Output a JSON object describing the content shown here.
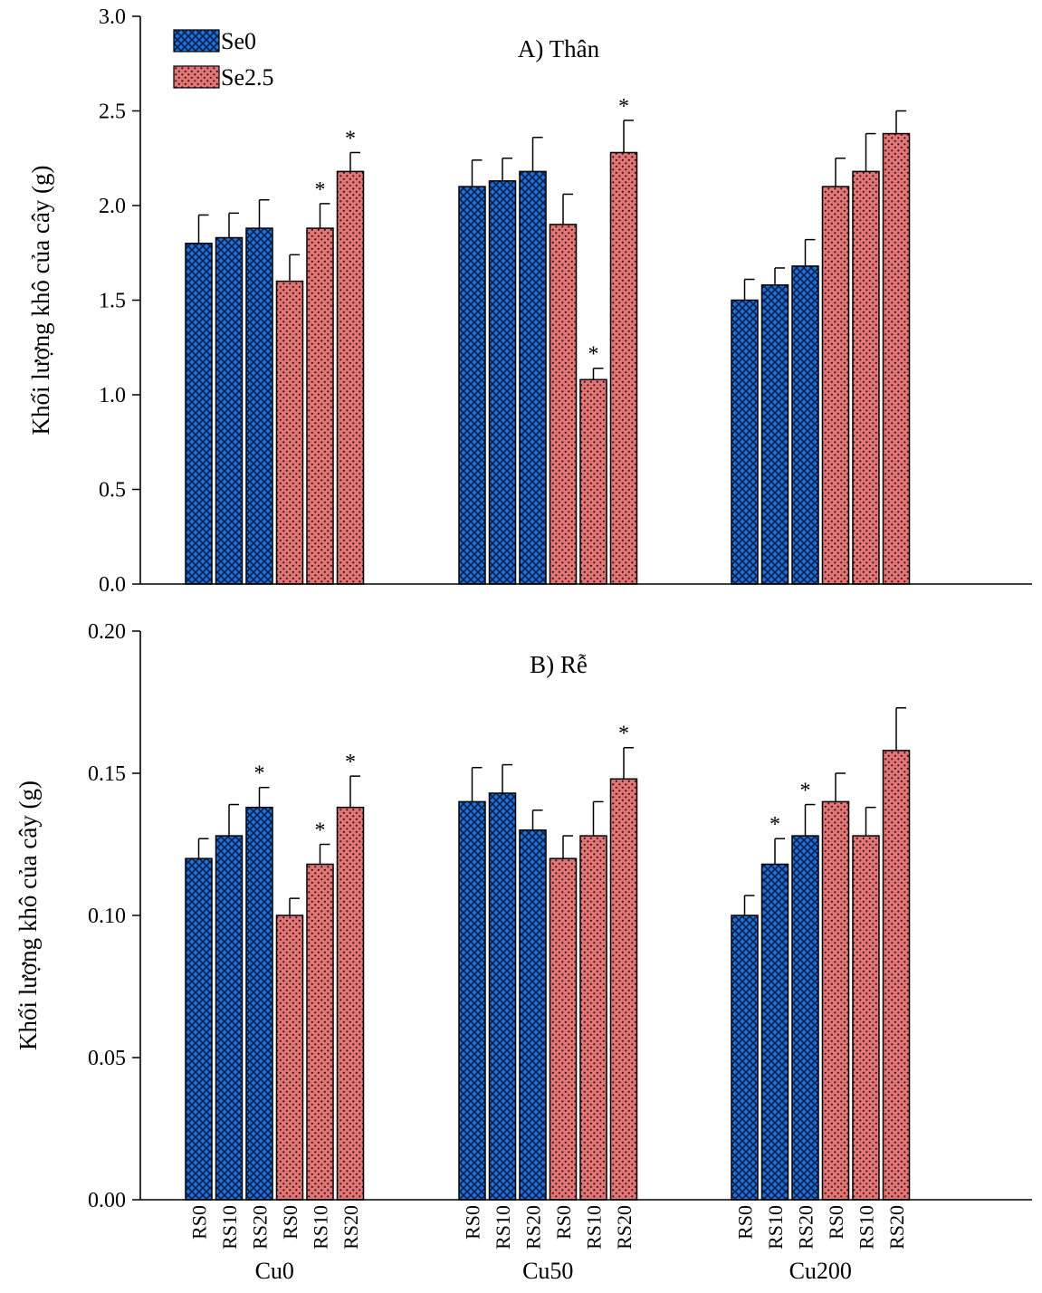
{
  "colors": {
    "se0": "#1f6fd6",
    "se25": "#e07676",
    "axis": "#000000"
  },
  "legend": {
    "position": "top-left",
    "items": [
      {
        "label": "Se0",
        "pattern": "crosshatch",
        "color": "#1f6fd6"
      },
      {
        "label": "Se2.5",
        "pattern": "dots",
        "color": "#e07676"
      }
    ]
  },
  "groups": [
    "Cu0",
    "Cu50",
    "Cu200"
  ],
  "categories": [
    "RS0",
    "RS10",
    "RS20",
    "RS0",
    "RS10",
    "RS20"
  ],
  "chart_data": [
    {
      "type": "bar",
      "title": "A) Thân",
      "ylabel": "Khối lượng khô của cây (g)",
      "ylim": [
        0,
        3.0
      ],
      "yticks": [
        "0.0",
        "0.5",
        "1.0",
        "1.5",
        "2.0",
        "2.5",
        "3.0"
      ],
      "groups": [
        "Cu0",
        "Cu50",
        "Cu200"
      ],
      "categories": [
        "RS0",
        "RS10",
        "RS20",
        "RS0",
        "RS10",
        "RS20"
      ],
      "series": [
        {
          "name": "Se0",
          "values": [
            [
              1.8,
              1.83,
              1.88
            ],
            [
              2.1,
              2.13,
              2.18
            ],
            [
              1.5,
              1.58,
              1.68
            ]
          ],
          "errors": [
            [
              0.15,
              0.13,
              0.15
            ],
            [
              0.14,
              0.12,
              0.18
            ],
            [
              0.11,
              0.09,
              0.14
            ]
          ],
          "significant": [
            [
              false,
              false,
              false
            ],
            [
              false,
              false,
              false
            ],
            [
              false,
              false,
              false
            ]
          ]
        },
        {
          "name": "Se2.5",
          "values": [
            [
              1.6,
              1.88,
              2.18
            ],
            [
              1.9,
              1.08,
              2.28
            ],
            [
              2.1,
              2.18,
              2.38
            ]
          ],
          "errors": [
            [
              0.14,
              0.13,
              0.1
            ],
            [
              0.16,
              0.06,
              0.17
            ],
            [
              0.15,
              0.2,
              0.12
            ]
          ],
          "significant": [
            [
              false,
              true,
              true
            ],
            [
              false,
              true,
              true
            ],
            [
              false,
              false,
              false
            ]
          ]
        }
      ],
      "marker": "*",
      "grid": false
    },
    {
      "type": "bar",
      "title": "B) Rễ",
      "ylabel": "Khối lượng khô của cây (g)",
      "ylim": [
        0,
        0.2
      ],
      "yticks": [
        "0.00",
        "0.05",
        "0.10",
        "0.15",
        "0.20"
      ],
      "groups": [
        "Cu0",
        "Cu50",
        "Cu200"
      ],
      "categories": [
        "RS0",
        "RS10",
        "RS20",
        "RS0",
        "RS10",
        "RS20"
      ],
      "series": [
        {
          "name": "Se0",
          "values": [
            [
              0.12,
              0.128,
              0.138
            ],
            [
              0.14,
              0.143,
              0.13
            ],
            [
              0.1,
              0.118,
              0.128
            ]
          ],
          "errors": [
            [
              0.007,
              0.011,
              0.007
            ],
            [
              0.012,
              0.01,
              0.007
            ],
            [
              0.007,
              0.009,
              0.011
            ]
          ],
          "significant": [
            [
              false,
              false,
              true
            ],
            [
              false,
              false,
              false
            ],
            [
              false,
              true,
              true
            ]
          ]
        },
        {
          "name": "Se2.5",
          "values": [
            [
              0.1,
              0.118,
              0.138
            ],
            [
              0.12,
              0.128,
              0.148
            ],
            [
              0.14,
              0.128,
              0.158
            ]
          ],
          "errors": [
            [
              0.006,
              0.007,
              0.011
            ],
            [
              0.008,
              0.012,
              0.011
            ],
            [
              0.01,
              0.01,
              0.015
            ]
          ],
          "significant": [
            [
              false,
              true,
              true
            ],
            [
              false,
              false,
              true
            ],
            [
              false,
              false,
              false
            ]
          ]
        }
      ],
      "marker": "*",
      "grid": false
    }
  ]
}
